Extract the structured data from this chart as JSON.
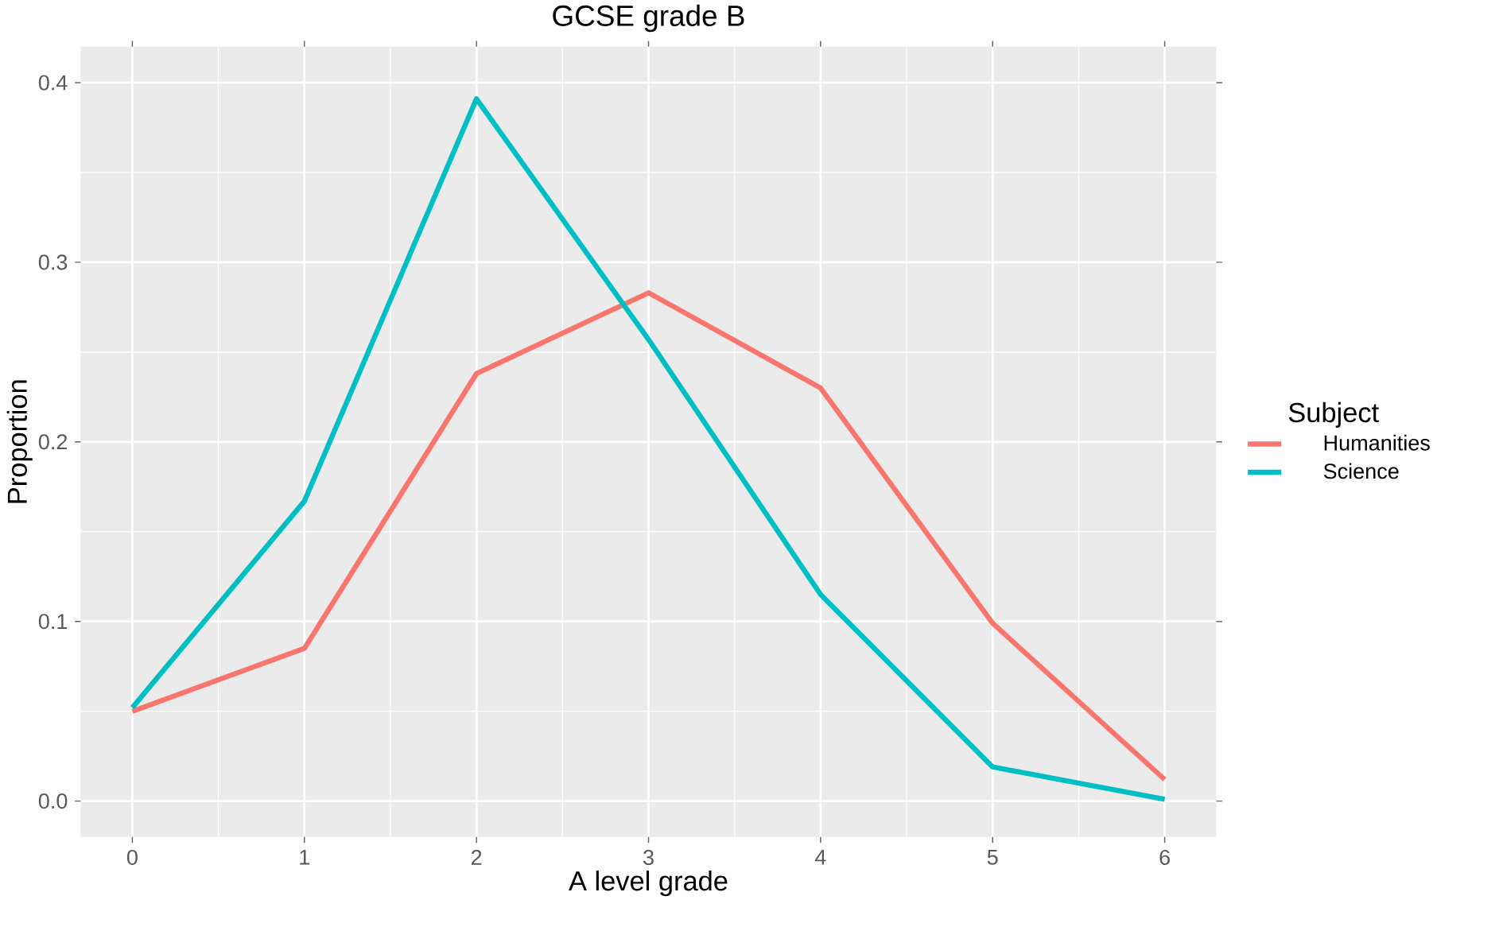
{
  "chart_data": {
    "type": "line",
    "title": "GCSE grade B",
    "xlabel": "A level grade",
    "ylabel": "Proportion",
    "legend_title": "Subject",
    "x": [
      0,
      1,
      2,
      3,
      4,
      5,
      6
    ],
    "series": [
      {
        "name": "Humanities",
        "color": "#f8766d",
        "values": [
          0.05,
          0.085,
          0.238,
          0.283,
          0.23,
          0.099,
          0.012
        ]
      },
      {
        "name": "Science",
        "color": "#00bfc4",
        "values": [
          0.052,
          0.167,
          0.391,
          0.257,
          0.115,
          0.019,
          0.001
        ]
      }
    ],
    "xlim": [
      -0.3,
      6.3
    ],
    "ylim": [
      -0.02,
      0.42
    ],
    "xticks": [
      0,
      1,
      2,
      3,
      4,
      5,
      6
    ],
    "yticks": [
      {
        "value": 0,
        "label": "0.0"
      },
      {
        "value": 0.1,
        "label": "0.1"
      },
      {
        "value": 0.2,
        "label": "0.2"
      },
      {
        "value": 0.3,
        "label": "0.3"
      },
      {
        "value": 0.4,
        "label": "0.4"
      }
    ],
    "grid": true,
    "legend": "right",
    "marker": "none",
    "line_style": "solid"
  }
}
